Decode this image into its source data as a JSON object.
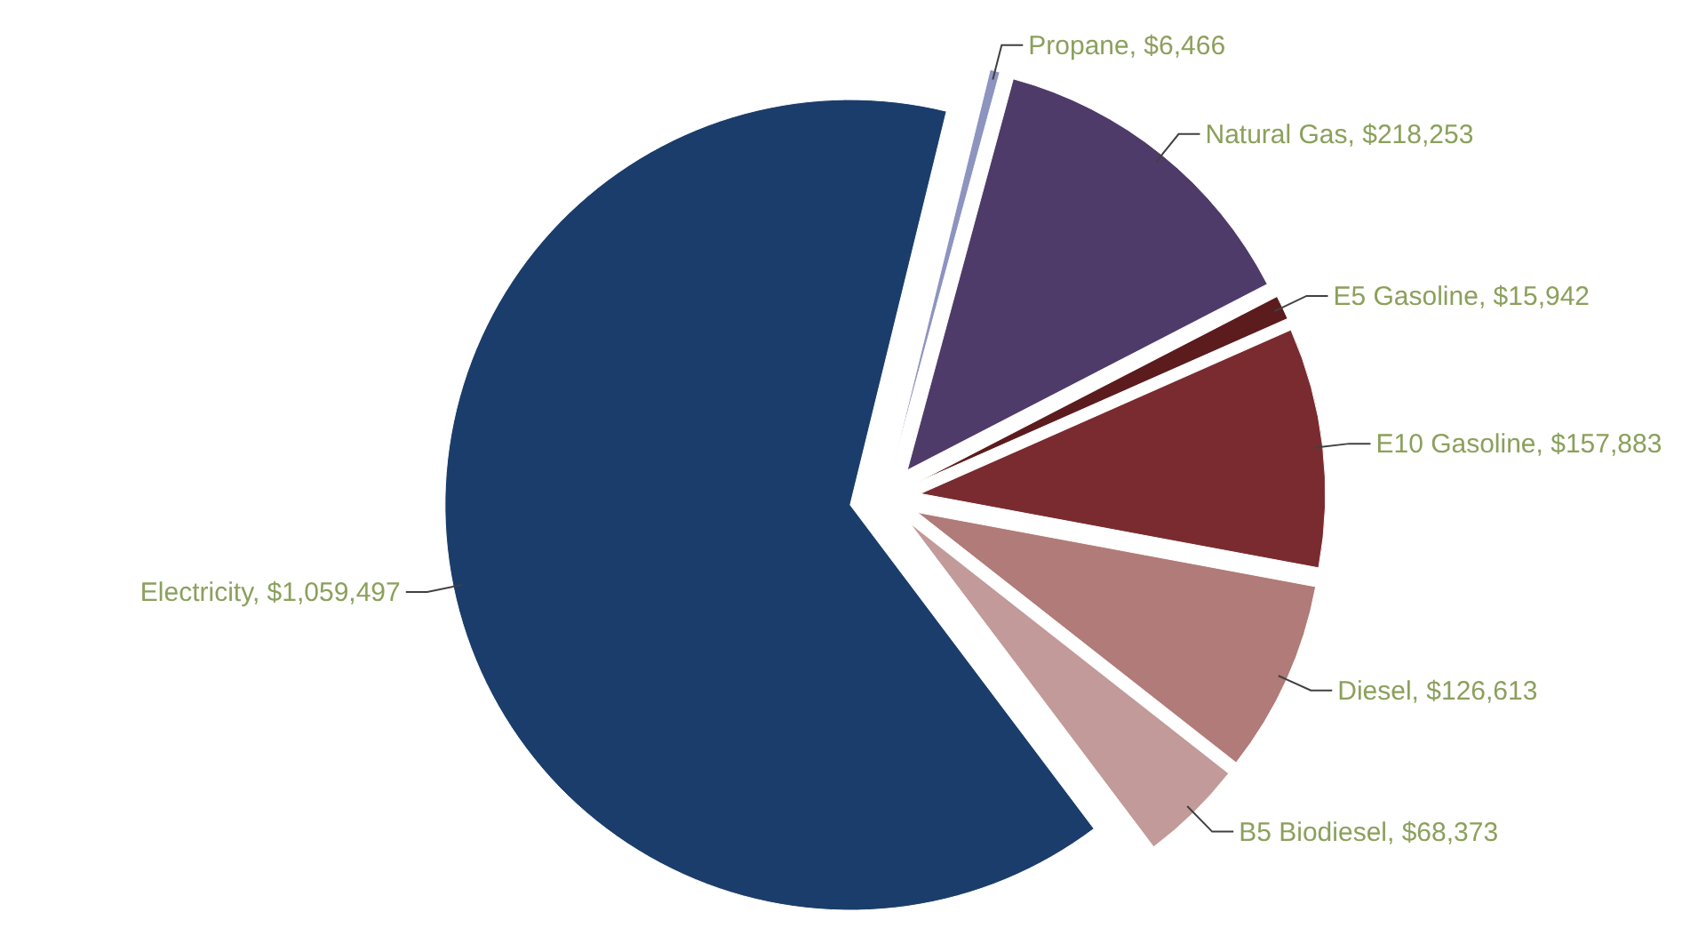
{
  "chart_data": {
    "type": "pie",
    "categories": [
      "Propane",
      "Natural Gas",
      "E5 Gasoline",
      "E10 Gasoline",
      "Diesel",
      "B5 Biodiesel",
      "Electricity"
    ],
    "values": [
      6466,
      218253,
      15942,
      157883,
      126613,
      68373,
      1059497
    ],
    "value_labels": [
      "$6,466",
      "$218,253",
      "$15,942",
      "$157,883",
      "$126,613",
      "$68,373",
      "$1,059,497"
    ],
    "colors": [
      "#8e94c0",
      "#4f3b69",
      "#5c1c1e",
      "#7a2b2f",
      "#b07b78",
      "#c29a99",
      "#1b3d6b"
    ]
  }
}
